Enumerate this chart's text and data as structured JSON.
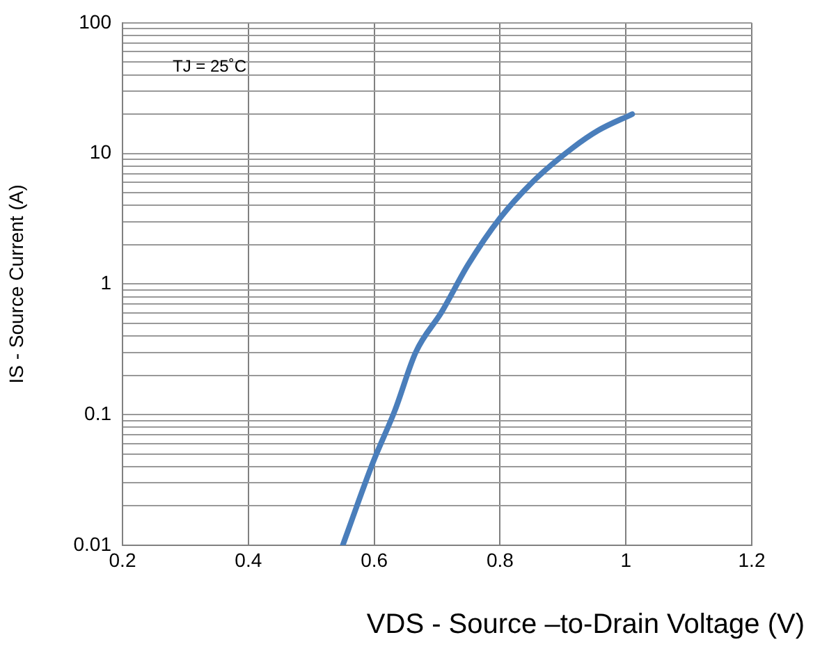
{
  "chart_data": {
    "type": "line",
    "xlabel": "VDS - Source –to-Drain Voltage (V)",
    "ylabel": "IS - Source Current (A)",
    "annotations": [
      "TJ = 25˚C"
    ],
    "x": [
      0.55,
      0.598,
      0.633,
      0.666,
      0.708,
      0.749,
      0.8,
      0.857,
      0.915,
      0.956,
      1.01
    ],
    "series": [
      {
        "color": "#4a7ebb",
        "values": [
          0.01,
          0.043,
          0.108,
          0.3,
          0.62,
          1.4,
          3.2,
          6.4,
          11,
          15,
          20
        ]
      }
    ],
    "xlim": [
      0.2,
      1.2
    ],
    "xticks": [
      0.2,
      0.4,
      0.6,
      0.8,
      1,
      1.2
    ],
    "ylim": [
      0.01,
      100
    ],
    "yticks": [
      0.01,
      {
        "value": 0.02,
        "label": null
      },
      {
        "value": 0.03,
        "label": null
      },
      {
        "value": 0.04,
        "label": null
      },
      {
        "value": 0.05,
        "label": null
      },
      {
        "value": 0.06,
        "label": null
      },
      {
        "value": 0.07,
        "label": null
      },
      {
        "value": 0.08,
        "label": null
      },
      {
        "value": 0.09,
        "label": null
      },
      0.1,
      {
        "value": 0.2,
        "label": null
      },
      {
        "value": 0.3,
        "label": null
      },
      {
        "value": 0.4,
        "label": null
      },
      {
        "value": 0.5,
        "label": null
      },
      {
        "value": 0.6,
        "label": null
      },
      {
        "value": 0.7,
        "label": null
      },
      {
        "value": 0.8,
        "label": null
      },
      {
        "value": 0.9,
        "label": null
      },
      1,
      {
        "value": 2,
        "label": null
      },
      {
        "value": 3,
        "label": null
      },
      {
        "value": 4,
        "label": null
      },
      {
        "value": 5,
        "label": null
      },
      {
        "value": 6,
        "label": null
      },
      {
        "value": 7,
        "label": null
      },
      {
        "value": 8,
        "label": null
      },
      {
        "value": 9,
        "label": null
      },
      10,
      {
        "value": 20,
        "label": null
      },
      {
        "value": 30,
        "label": null
      },
      {
        "value": 40,
        "label": null
      },
      {
        "value": 50,
        "label": null
      },
      {
        "value": 60,
        "label": null
      },
      {
        "value": 70,
        "label": null
      },
      {
        "value": 80,
        "label": null
      },
      {
        "value": 90,
        "label": null
      },
      100
    ],
    "log": "y",
    "grid": true,
    "legend": false,
    "marker": "none",
    "line_style": "solid"
  }
}
